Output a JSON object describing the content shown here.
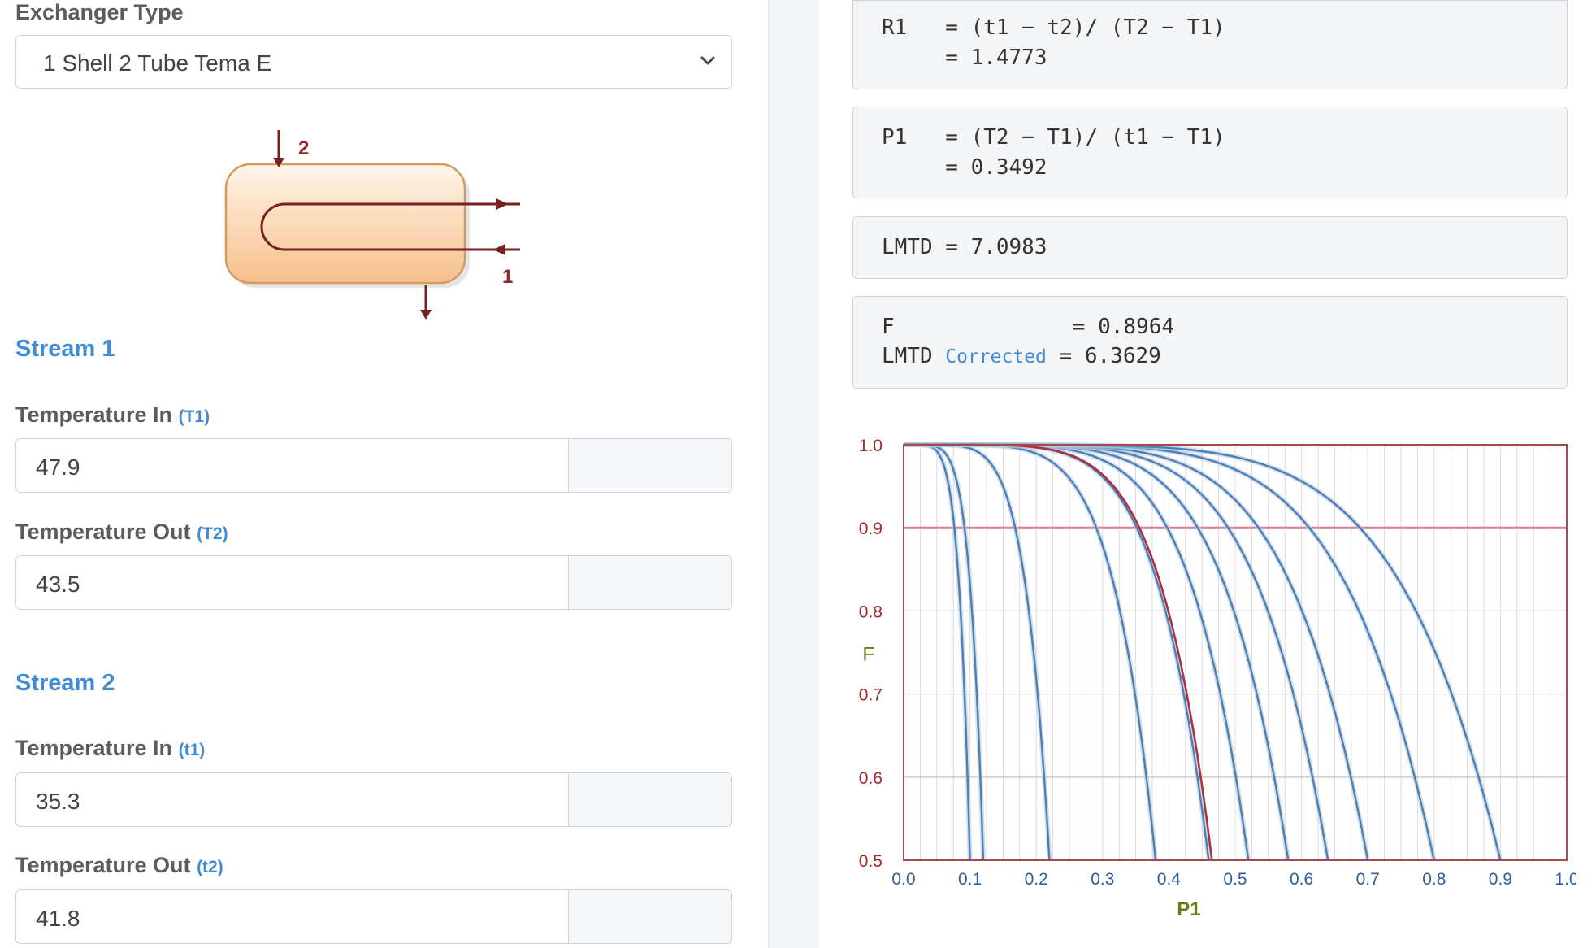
{
  "exchanger": {
    "label": "Exchanger Type",
    "selected": "1 Shell 2 Tube Tema E",
    "diagram": {
      "top_label": "2",
      "bottom_label": "1"
    }
  },
  "stream1": {
    "title": "Stream 1",
    "temp_in": {
      "label": "Temperature In",
      "sub": "(T1)",
      "value": "47.9"
    },
    "temp_out": {
      "label": "Temperature Out",
      "sub": "(T2)",
      "value": "43.5"
    }
  },
  "stream2": {
    "title": "Stream 2",
    "temp_in": {
      "label": "Temperature In",
      "sub": "(t1)",
      "value": "35.3"
    },
    "temp_out": {
      "label": "Temperature Out",
      "sub": "(t2)",
      "value": "41.8"
    }
  },
  "results": {
    "r1_line1": "R1   = (t1 − t2)/ (T2 − T1)",
    "r1_line2": "     = 1.4773",
    "p1_line1": "P1   = (T2 − T1)/ (t1 − T1)",
    "p1_line2": "     = 0.3492",
    "lmtd": "LMTD = 7.0983",
    "f_line": "F              = 0.8964",
    "lmtd_corr_prefix": "LMTD ",
    "lmtd_corr_word": "Corrected",
    "lmtd_corr_value": " = 6.3629"
  },
  "colors": {
    "accent": "#3f8bd6",
    "curve": "#4a7fb8",
    "highlight_curve": "#b0303e",
    "frame": "#a34a4a",
    "ref_line": "#d67f96"
  },
  "chart_data": {
    "type": "line",
    "xlabel": "P1",
    "ylabel": "F",
    "xlim": [
      0,
      1.0
    ],
    "ylim": [
      0.5,
      1.0
    ],
    "x_ticks": [
      "0.0",
      "0.1",
      "0.2",
      "0.3",
      "0.4",
      "0.5",
      "0.6",
      "0.7",
      "0.8",
      "0.9",
      "1.0"
    ],
    "y_ticks": [
      "1.0",
      "0.9",
      "0.8",
      "0.7",
      "0.6",
      "0.5"
    ],
    "reference_line_y": 0.9,
    "curves_x_at_F_0_5": [
      0.1,
      0.12,
      0.22,
      0.38,
      0.46,
      0.52,
      0.58,
      0.64,
      0.7,
      0.8,
      0.9
    ],
    "highlight_curve_x_at_F_0_5": 0.465,
    "series": [
      {
        "values": [
          1.0,
          0.9,
          0.5
        ],
        "x": [
          0.0,
          0.35,
          0.465
        ]
      }
    ]
  }
}
